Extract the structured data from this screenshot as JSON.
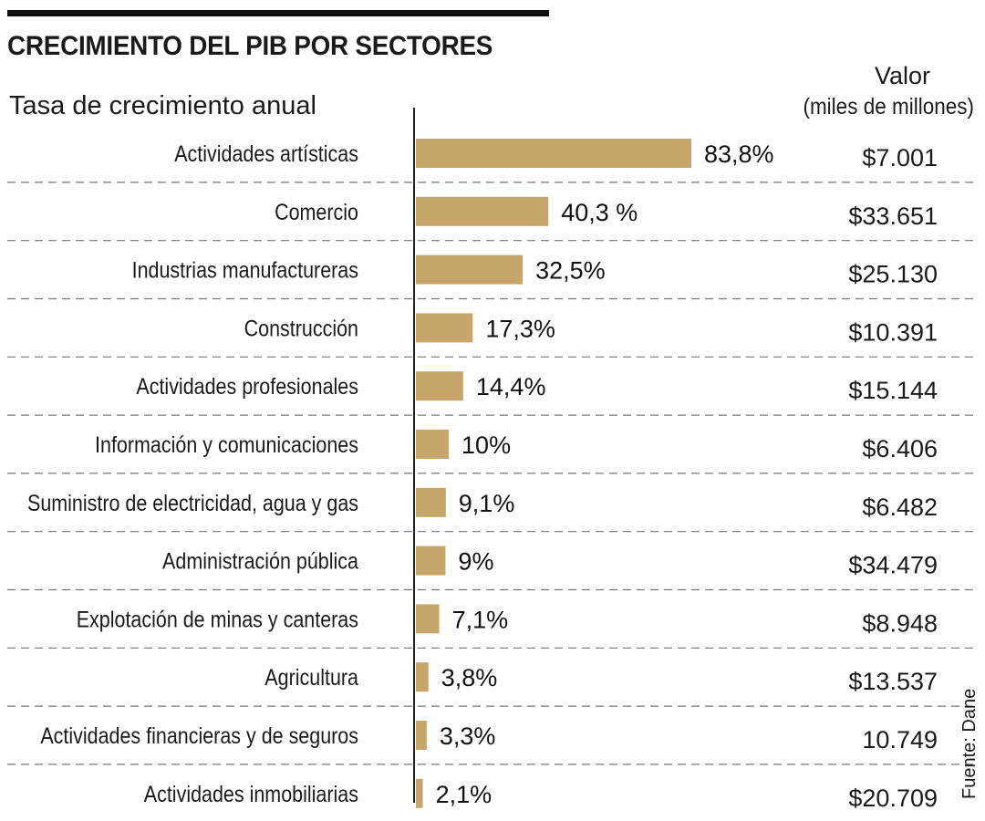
{
  "chart_data": {
    "type": "bar",
    "orientation": "horizontal",
    "title": "CRECIMIENTO DEL PIB POR SECTORES",
    "subtitle": "Tasa de crecimiento anual",
    "value_header": {
      "line1": "Valor",
      "line2": "(miles de millones)"
    },
    "source": "Fuente: Dane",
    "bar_color": "#c6a66b",
    "xlim": [
      0,
      83.8
    ],
    "categories": [
      "Actividades artísticas",
      "Comercio",
      "Industrias manufactureras",
      "Construcción",
      "Actividades profesionales",
      "Información y comunicaciones",
      "Suministro de electricidad, agua y gas",
      "Administración pública",
      "Explotación de minas y canteras",
      "Agricultura",
      "Actividades financieras y de seguros",
      "Actividades inmobiliarias"
    ],
    "values": [
      83.8,
      40.3,
      32.5,
      17.3,
      14.4,
      10,
      9.1,
      9,
      7.1,
      3.8,
      3.3,
      2.1
    ],
    "value_labels": [
      "83,8%",
      "40,3 %",
      "32,5%",
      "17,3%",
      "14,4%",
      "10%",
      "9,1%",
      "9%",
      "7,1%",
      "3,8%",
      "3,3%",
      "2,1%"
    ],
    "secondary_values": [
      "$7.001",
      "$33.651",
      "$25.130",
      "$10.391",
      "$15.144",
      "$6.406",
      "$6.482",
      "$34.479",
      "$8.948",
      "$13.537",
      "10.749",
      "$20.709"
    ]
  }
}
